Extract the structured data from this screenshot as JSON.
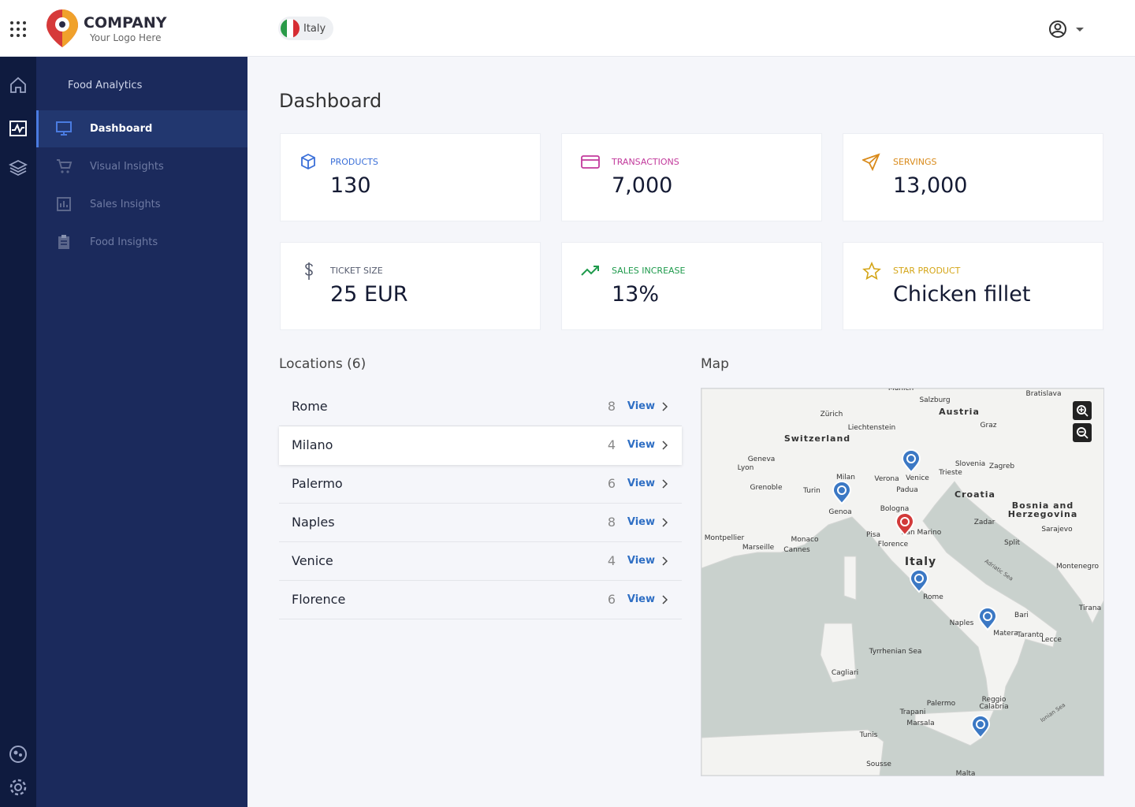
{
  "header": {
    "brand": "COMPANY",
    "tagline": "Your Logo Here",
    "country": "Italy"
  },
  "sidebar": {
    "section": "Food Analytics",
    "items": [
      "Dashboard",
      "Visual Insights",
      "Sales Insights",
      "Food Insights"
    ]
  },
  "page": {
    "title": "Dashboard"
  },
  "stats": [
    {
      "label": "PRODUCTS",
      "value": "130"
    },
    {
      "label": "TRANSACTIONS",
      "value": "7,000"
    },
    {
      "label": "SERVINGS",
      "value": "13,000"
    },
    {
      "label": "TICKET SIZE",
      "value": "25 EUR"
    },
    {
      "label": "SALES INCREASE",
      "value": "13%"
    },
    {
      "label": "STAR PRODUCT",
      "value": "Chicken fillet"
    }
  ],
  "locations": {
    "title": "Locations (6)",
    "items": [
      {
        "name": "Rome",
        "count": "8",
        "action": "View"
      },
      {
        "name": "Milano",
        "count": "4",
        "action": "View"
      },
      {
        "name": "Palermo",
        "count": "6",
        "action": "View"
      },
      {
        "name": "Naples",
        "count": "8",
        "action": "View"
      },
      {
        "name": "Venice",
        "count": "4",
        "action": "View"
      },
      {
        "name": "Florence",
        "count": "6",
        "action": "View"
      }
    ]
  },
  "map": {
    "title": "Map",
    "labels": [
      "Munich",
      "Bratislava",
      "Salzburg",
      "Zürich",
      "Austria",
      "Graz",
      "Liechtenstein",
      "Switzerland",
      "Geneva",
      "Lyon",
      "Slovenia",
      "Zagreb",
      "Milan",
      "Verona",
      "Venice",
      "Trieste",
      "Padua",
      "Turin",
      "Grenoble",
      "Croatia",
      "Genoa",
      "Bologna",
      "Bosnia and",
      "Herzegovina",
      "Zadar",
      "Sarajevo",
      "San Marino",
      "Pisa",
      "Florence",
      "Montpellier",
      "Marseille",
      "Monaco",
      "Cannes",
      "Italy",
      "Split",
      "Montenegro",
      "Adriatic Sea",
      "Rome",
      "Tirana",
      "Bari",
      "Naples",
      "Matera",
      "Taranto",
      "Lecce",
      "Tyrrhenian Sea",
      "Cagliari",
      "Palermo",
      "Reggio",
      "Calabria",
      "Ionian Sea",
      "Trapani",
      "Marsala",
      "Tunis",
      "Sousse",
      "Malta"
    ]
  }
}
